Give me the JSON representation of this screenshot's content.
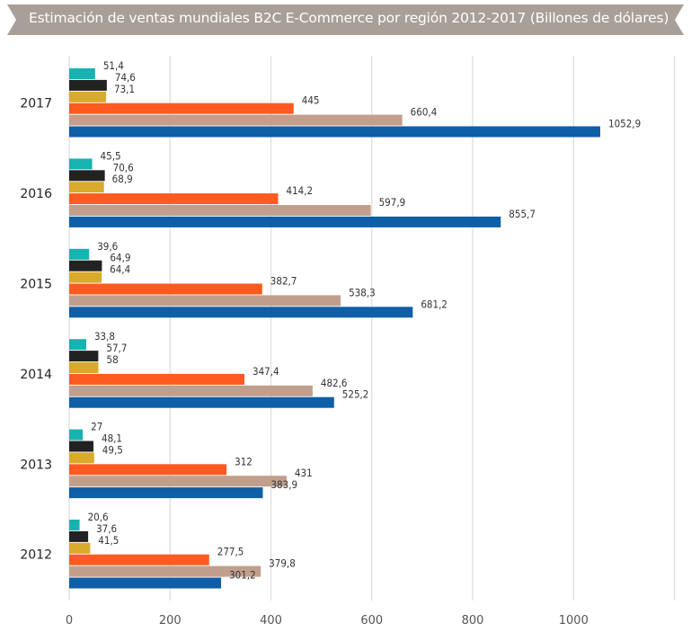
{
  "title": "Estimación de ventas mundiales B2C E-Commerce por región 2012-2017 (Billones de dólares)",
  "colors": {
    "banner": "#a89f98",
    "grid": "#dcdcdc",
    "series": [
      "#17b3b0",
      "#222222",
      "#d9aa2b",
      "#ff5a1f",
      "#c19f8c",
      "#0e5ea8"
    ]
  },
  "chart_data": {
    "type": "bar",
    "orientation": "horizontal",
    "title": "Estimación de ventas mundiales B2C E-Commerce por región 2012-2017 (Billones de dólares)",
    "categories": [
      "2017",
      "2016",
      "2015",
      "2014",
      "2013",
      "2012"
    ],
    "series": [
      {
        "values": [
          51.4,
          45.5,
          39.6,
          33.8,
          27,
          20.6
        ],
        "labels": [
          "51,4",
          "45,5",
          "39,6",
          "33,8",
          "27",
          "20,6"
        ]
      },
      {
        "values": [
          74.6,
          70.6,
          64.9,
          57.7,
          48.1,
          37.6
        ],
        "labels": [
          "74,6",
          "70,6",
          "64,9",
          "57,7",
          "48,1",
          "37,6"
        ]
      },
      {
        "values": [
          73.1,
          68.9,
          64.4,
          58,
          49.5,
          41.5
        ],
        "labels": [
          "73,1",
          "68,9",
          "64,4",
          "58",
          "49,5",
          "41,5"
        ]
      },
      {
        "values": [
          445,
          414.2,
          382.7,
          347.4,
          312,
          277.5
        ],
        "labels": [
          "445",
          "414,2",
          "382,7",
          "347,4",
          "312",
          "277,5"
        ]
      },
      {
        "values": [
          660.4,
          597.9,
          538.3,
          482.6,
          431,
          379.8
        ],
        "labels": [
          "660,4",
          "597,9",
          "538,3",
          "482,6",
          "431",
          "379,8"
        ]
      },
      {
        "values": [
          1052.9,
          855.7,
          681.2,
          525.2,
          383.9,
          301.2
        ],
        "labels": [
          "1052,9",
          "855,7",
          "681,2",
          "525,2",
          "383,9",
          "301,2"
        ]
      }
    ],
    "xlim": [
      0,
      1200
    ],
    "xticks": [
      0,
      200,
      400,
      600,
      800,
      1000
    ],
    "xtick_labels": [
      "0",
      "200",
      "400",
      "600",
      "800",
      "1000"
    ],
    "grid": true,
    "legend": "none"
  }
}
